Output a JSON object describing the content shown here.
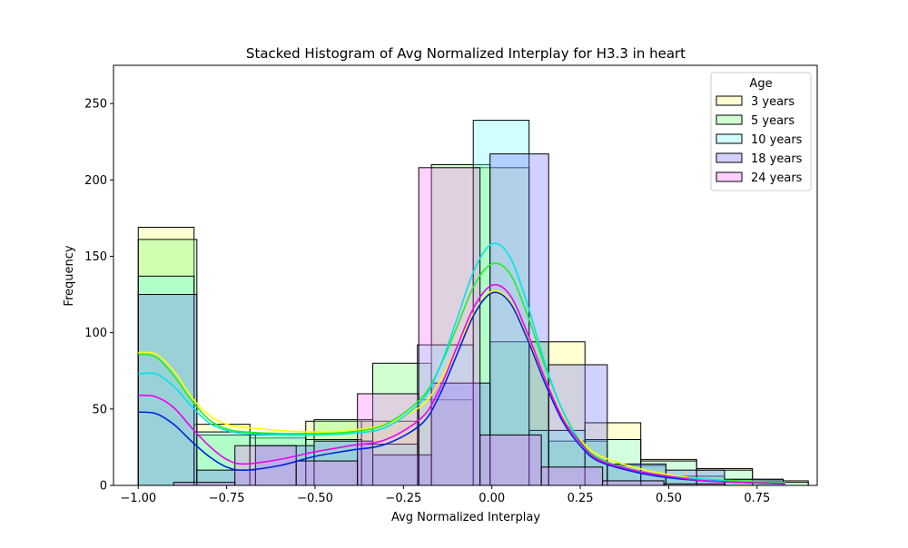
{
  "chart_data": {
    "type": "bar",
    "title": "Stacked Histogram of Avg Normalized  Interplay for H3.3 in heart",
    "xlabel": "Avg Normalized Interplay",
    "ylabel": "Frequency",
    "xlim": [
      -1.07,
      0.92
    ],
    "ylim": [
      0,
      275
    ],
    "xticks": [
      -1.0,
      -0.75,
      -0.5,
      -0.25,
      0.0,
      0.25,
      0.5,
      0.75
    ],
    "xtick_labels": [
      "−1.00",
      "−0.75",
      "−0.50",
      "−0.25",
      "0.00",
      "0.25",
      "0.50",
      "0.75"
    ],
    "yticks": [
      0,
      50,
      100,
      150,
      200,
      250
    ],
    "ytick_labels": [
      "0",
      "50",
      "100",
      "150",
      "200",
      "250"
    ],
    "grid": false,
    "legend": {
      "title": "Age",
      "placement": "top-right"
    },
    "series": [
      {
        "name": "3 years",
        "color": "#ffff66",
        "kde_color": "#ffff00",
        "bin_start": -1.0,
        "bin_width": 0.1579,
        "values": [
          169,
          40,
          31,
          42,
          42,
          56,
          208,
          94,
          41,
          17,
          11,
          3
        ],
        "kde": [
          [
            -1.0,
            87
          ],
          [
            -0.95,
            86
          ],
          [
            -0.9,
            75
          ],
          [
            -0.85,
            58
          ],
          [
            -0.8,
            46
          ],
          [
            -0.75,
            40
          ],
          [
            -0.7,
            38
          ],
          [
            -0.6,
            36
          ],
          [
            -0.5,
            35
          ],
          [
            -0.4,
            36
          ],
          [
            -0.3,
            40
          ],
          [
            -0.2,
            52
          ],
          [
            -0.15,
            67
          ],
          [
            -0.1,
            90
          ],
          [
            -0.05,
            113
          ],
          [
            0.0,
            127
          ],
          [
            0.05,
            121
          ],
          [
            0.1,
            97
          ],
          [
            0.15,
            70
          ],
          [
            0.2,
            45
          ],
          [
            0.25,
            30
          ],
          [
            0.3,
            20
          ],
          [
            0.4,
            12
          ],
          [
            0.5,
            7
          ],
          [
            0.6,
            4
          ],
          [
            0.7,
            2
          ],
          [
            0.83,
            1
          ]
        ]
      },
      {
        "name": "5 years",
        "color": "#66ff66",
        "kde_color": "#22ee22",
        "bin_start": -1.0,
        "bin_width": 0.1658,
        "values": [
          161,
          33,
          33,
          43,
          80,
          210,
          94,
          29,
          13,
          6,
          4
        ],
        "kde": [
          [
            -1.0,
            86
          ],
          [
            -0.95,
            84
          ],
          [
            -0.9,
            72
          ],
          [
            -0.85,
            56
          ],
          [
            -0.8,
            43
          ],
          [
            -0.75,
            37
          ],
          [
            -0.7,
            35
          ],
          [
            -0.6,
            34
          ],
          [
            -0.5,
            34
          ],
          [
            -0.4,
            35
          ],
          [
            -0.3,
            40
          ],
          [
            -0.2,
            57
          ],
          [
            -0.15,
            76
          ],
          [
            -0.1,
            103
          ],
          [
            -0.05,
            131
          ],
          [
            0.0,
            145
          ],
          [
            0.05,
            139
          ],
          [
            0.1,
            112
          ],
          [
            0.15,
            78
          ],
          [
            0.2,
            49
          ],
          [
            0.25,
            29
          ],
          [
            0.3,
            18
          ],
          [
            0.4,
            10
          ],
          [
            0.5,
            6
          ],
          [
            0.6,
            4
          ],
          [
            0.7,
            3
          ],
          [
            0.83,
            2
          ]
        ]
      },
      {
        "name": "10 years",
        "color": "#66ffff",
        "kde_color": "#00e5e5",
        "bin_start": -1.0,
        "bin_width": 0.1579,
        "values": [
          137,
          35,
          34,
          30,
          27,
          92,
          239,
          36,
          30,
          16,
          10,
          2
        ],
        "kde": [
          [
            -1.0,
            73
          ],
          [
            -0.95,
            73
          ],
          [
            -0.9,
            65
          ],
          [
            -0.85,
            52
          ],
          [
            -0.8,
            41
          ],
          [
            -0.75,
            36
          ],
          [
            -0.7,
            34
          ],
          [
            -0.6,
            33
          ],
          [
            -0.5,
            33
          ],
          [
            -0.4,
            34
          ],
          [
            -0.3,
            38
          ],
          [
            -0.2,
            55
          ],
          [
            -0.15,
            76
          ],
          [
            -0.1,
            108
          ],
          [
            -0.05,
            141
          ],
          [
            0.0,
            158
          ],
          [
            0.05,
            150
          ],
          [
            0.1,
            119
          ],
          [
            0.15,
            80
          ],
          [
            0.2,
            49
          ],
          [
            0.25,
            28
          ],
          [
            0.3,
            17
          ],
          [
            0.4,
            10
          ],
          [
            0.5,
            6
          ],
          [
            0.6,
            4
          ],
          [
            0.7,
            2
          ],
          [
            0.83,
            1
          ]
        ]
      },
      {
        "name": "18 years",
        "color": "#6666ff",
        "kde_color": "#0022dd",
        "bin_start": -1.0,
        "bin_width": 0.1658,
        "values": [
          125,
          10,
          26,
          29,
          20,
          67,
          217,
          79,
          14,
          10,
          4
        ],
        "kde": [
          [
            -1.0,
            48
          ],
          [
            -0.95,
            47
          ],
          [
            -0.9,
            40
          ],
          [
            -0.85,
            29
          ],
          [
            -0.8,
            19
          ],
          [
            -0.75,
            12
          ],
          [
            -0.7,
            10
          ],
          [
            -0.6,
            13
          ],
          [
            -0.5,
            19
          ],
          [
            -0.4,
            23
          ],
          [
            -0.3,
            27
          ],
          [
            -0.2,
            40
          ],
          [
            -0.15,
            58
          ],
          [
            -0.1,
            85
          ],
          [
            -0.05,
            112
          ],
          [
            0.0,
            126
          ],
          [
            0.05,
            120
          ],
          [
            0.1,
            96
          ],
          [
            0.15,
            67
          ],
          [
            0.2,
            42
          ],
          [
            0.25,
            26
          ],
          [
            0.3,
            16
          ],
          [
            0.4,
            9
          ],
          [
            0.5,
            5
          ],
          [
            0.6,
            3
          ],
          [
            0.7,
            2
          ],
          [
            0.83,
            1
          ]
        ]
      },
      {
        "name": "24 years",
        "color": "#ff66ff",
        "kde_color": "#ee00ee",
        "bin_start": -0.9,
        "bin_width": 0.1733,
        "values": [
          2,
          26,
          16,
          60,
          208,
          33,
          12,
          3,
          1
        ],
        "kde": [
          [
            -1.0,
            59
          ],
          [
            -0.95,
            58
          ],
          [
            -0.9,
            51
          ],
          [
            -0.85,
            38
          ],
          [
            -0.8,
            26
          ],
          [
            -0.75,
            17
          ],
          [
            -0.7,
            14
          ],
          [
            -0.6,
            17
          ],
          [
            -0.5,
            22
          ],
          [
            -0.4,
            26
          ],
          [
            -0.3,
            30
          ],
          [
            -0.2,
            44
          ],
          [
            -0.15,
            62
          ],
          [
            -0.1,
            90
          ],
          [
            -0.05,
            117
          ],
          [
            0.0,
            131
          ],
          [
            0.05,
            125
          ],
          [
            0.1,
            100
          ],
          [
            0.15,
            70
          ],
          [
            0.2,
            44
          ],
          [
            0.25,
            28
          ],
          [
            0.3,
            17
          ],
          [
            0.4,
            10
          ],
          [
            0.5,
            6
          ],
          [
            0.6,
            3
          ],
          [
            0.7,
            2
          ],
          [
            0.83,
            1
          ]
        ]
      }
    ]
  }
}
